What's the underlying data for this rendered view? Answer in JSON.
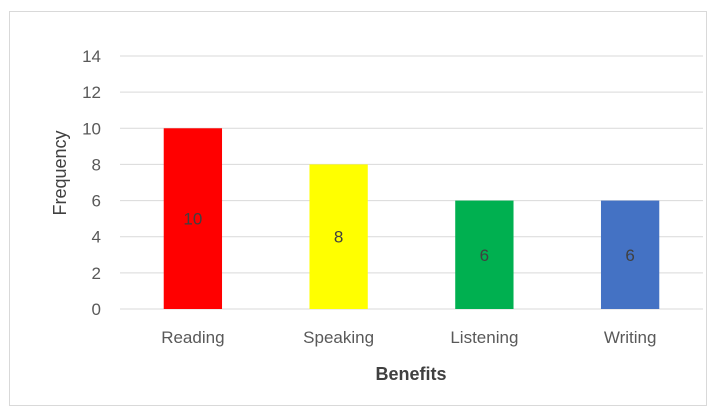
{
  "chart_data": {
    "type": "bar",
    "title": "",
    "xlabel": "Benefits",
    "ylabel": "Frequency",
    "categories": [
      "Reading",
      "Speaking",
      "Listening",
      "Writing"
    ],
    "values": [
      10,
      8,
      6,
      6
    ],
    "data_labels": [
      "10",
      "8",
      "6",
      "6"
    ],
    "bar_colors": [
      "#ff0000",
      "#ffff00",
      "#00b050",
      "#4472c4"
    ],
    "ylim": [
      0,
      14
    ],
    "y_ticks": [
      0,
      2,
      4,
      6,
      8,
      10,
      12,
      14
    ],
    "grid": true,
    "legend": "none"
  },
  "colors": {
    "gridline": "#d9d9d9",
    "tick_text": "#595959",
    "title_text": "#404040"
  }
}
